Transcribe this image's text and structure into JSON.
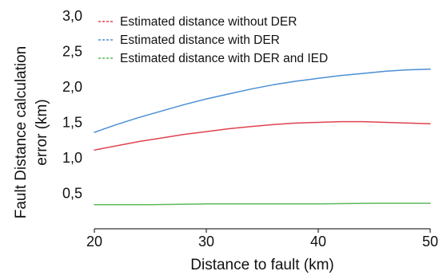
{
  "chart_data": {
    "type": "line",
    "title": "",
    "xlabel": "Distance to fault (km)",
    "ylabel_lines": [
      "Fault Distance calculation",
      "error (km)"
    ],
    "xlim": [
      20,
      50
    ],
    "ylim": [
      0,
      3.0
    ],
    "x_ticks": [
      20,
      30,
      40,
      50
    ],
    "x_tick_labels": [
      "20",
      "30",
      "40",
      "50"
    ],
    "y_ticks": [
      0.5,
      1.0,
      1.5,
      2.0,
      2.5,
      3.0
    ],
    "y_tick_labels": [
      "0,5",
      "1,0",
      "1,5",
      "2,0",
      "2,5",
      "3,0"
    ],
    "grid": false,
    "legend_position": "top-left",
    "series": [
      {
        "name": "Estimated distance without DER",
        "color": "#e0424f",
        "x": [
          20,
          22,
          24,
          26,
          28,
          30,
          32,
          34,
          36,
          38,
          40,
          42,
          44,
          46,
          48,
          50
        ],
        "y": [
          1.11,
          1.17,
          1.23,
          1.28,
          1.33,
          1.37,
          1.41,
          1.44,
          1.47,
          1.49,
          1.5,
          1.51,
          1.51,
          1.5,
          1.49,
          1.48
        ]
      },
      {
        "name": "Estimated distance with DER",
        "color": "#4a8fd4",
        "x": [
          20,
          22,
          24,
          26,
          28,
          30,
          32,
          34,
          36,
          38,
          40,
          42,
          44,
          46,
          48,
          50
        ],
        "y": [
          1.36,
          1.47,
          1.57,
          1.66,
          1.75,
          1.83,
          1.9,
          1.97,
          2.03,
          2.08,
          2.12,
          2.16,
          2.19,
          2.22,
          2.24,
          2.25
        ]
      },
      {
        "name": "Estimated distance with DER and IED",
        "color": "#5cb85c",
        "x": [
          20,
          25,
          30,
          35,
          40,
          45,
          50
        ],
        "y": [
          0.34,
          0.34,
          0.35,
          0.35,
          0.35,
          0.36,
          0.36
        ]
      }
    ]
  }
}
